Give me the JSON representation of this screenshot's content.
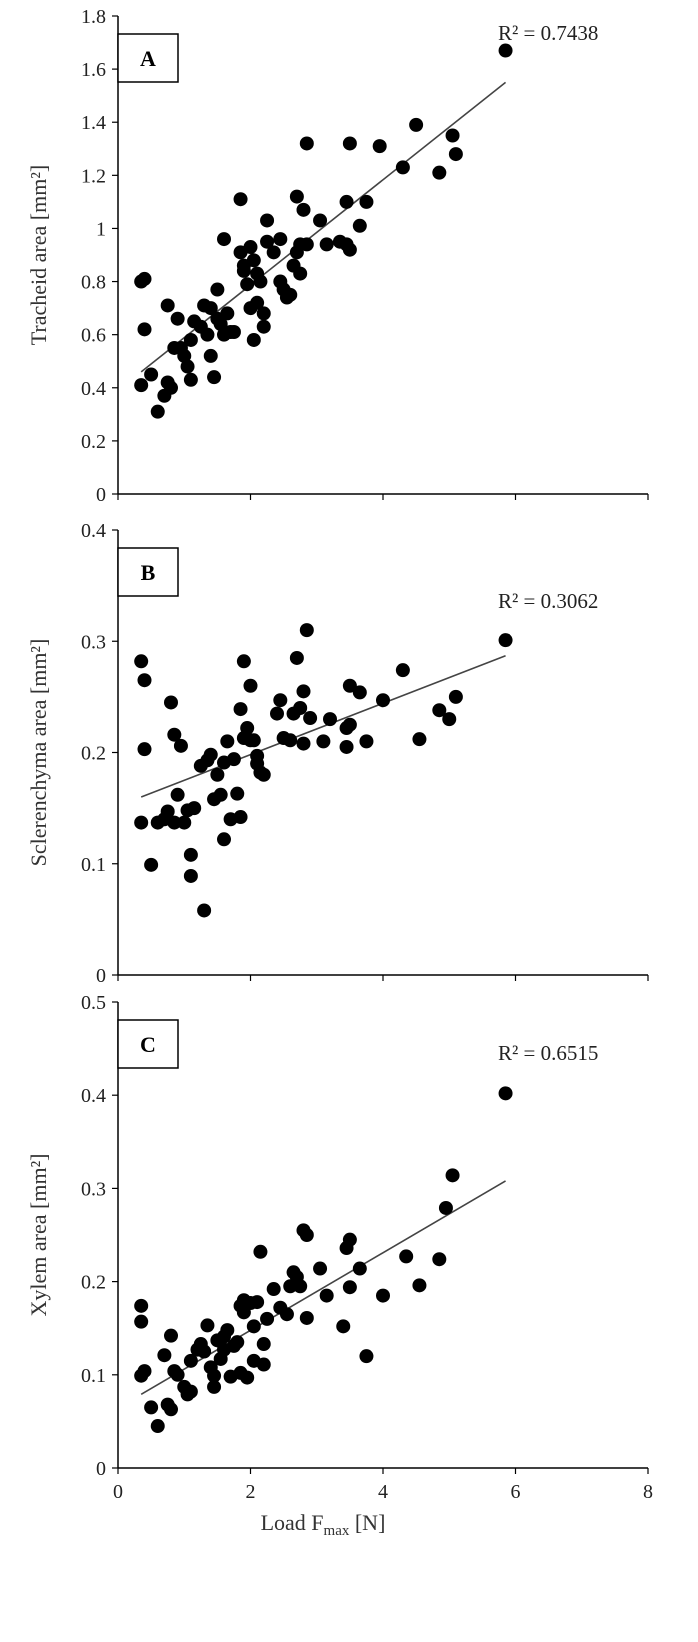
{
  "chart_data": [
    {
      "type": "scatter",
      "panel": "A",
      "ylabel": "Tracheid area [mm²]",
      "r2_label": "R² = 0.7438",
      "ylim": [
        0,
        1.8
      ],
      "yticks": [
        {
          "value": 0,
          "label": "0"
        },
        {
          "value": 0.2,
          "label": "0.2"
        },
        {
          "value": 0.4,
          "label": "0.4"
        },
        {
          "value": 0.6,
          "label": "0.6"
        },
        {
          "value": 0.8,
          "label": "0.8"
        },
        {
          "value": 1.0,
          "label": "1"
        },
        {
          "value": 1.2,
          "label": "1.2"
        },
        {
          "value": 1.4,
          "label": "1.4"
        },
        {
          "value": 1.6,
          "label": "1.6"
        },
        {
          "value": 1.8,
          "label": "1.8"
        }
      ],
      "trendline": {
        "x": [
          0.35,
          5.85
        ],
        "y": [
          0.46,
          1.55
        ]
      },
      "points": [
        [
          0.35,
          0.8
        ],
        [
          0.4,
          0.81
        ],
        [
          0.4,
          0.62
        ],
        [
          0.35,
          0.41
        ],
        [
          0.5,
          0.45
        ],
        [
          0.6,
          0.31
        ],
        [
          0.7,
          0.37
        ],
        [
          0.75,
          0.42
        ],
        [
          0.8,
          0.4
        ],
        [
          0.75,
          0.71
        ],
        [
          0.85,
          0.55
        ],
        [
          0.9,
          0.66
        ],
        [
          0.95,
          0.55
        ],
        [
          1.0,
          0.52
        ],
        [
          1.05,
          0.48
        ],
        [
          1.1,
          0.43
        ],
        [
          1.1,
          0.58
        ],
        [
          1.15,
          0.65
        ],
        [
          1.25,
          0.63
        ],
        [
          1.3,
          0.71
        ],
        [
          1.35,
          0.6
        ],
        [
          1.4,
          0.52
        ],
        [
          1.4,
          0.7
        ],
        [
          1.45,
          0.44
        ],
        [
          1.5,
          0.66
        ],
        [
          1.5,
          0.77
        ],
        [
          1.55,
          0.64
        ],
        [
          1.6,
          0.6
        ],
        [
          1.6,
          0.96
        ],
        [
          1.65,
          0.68
        ],
        [
          1.7,
          0.61
        ],
        [
          1.75,
          0.61
        ],
        [
          1.85,
          1.11
        ],
        [
          1.85,
          0.91
        ],
        [
          1.9,
          0.86
        ],
        [
          1.9,
          0.84
        ],
        [
          1.95,
          0.79
        ],
        [
          2.0,
          0.7
        ],
        [
          2.0,
          0.93
        ],
        [
          2.05,
          0.88
        ],
        [
          2.05,
          0.58
        ],
        [
          2.1,
          0.83
        ],
        [
          2.1,
          0.72
        ],
        [
          2.15,
          0.8
        ],
        [
          2.2,
          0.68
        ],
        [
          2.2,
          0.63
        ],
        [
          2.25,
          0.95
        ],
        [
          2.25,
          1.03
        ],
        [
          2.35,
          0.91
        ],
        [
          2.45,
          0.96
        ],
        [
          2.45,
          0.8
        ],
        [
          2.5,
          0.77
        ],
        [
          2.55,
          0.74
        ],
        [
          2.6,
          0.75
        ],
        [
          2.65,
          0.86
        ],
        [
          2.7,
          1.12
        ],
        [
          2.7,
          0.91
        ],
        [
          2.75,
          0.83
        ],
        [
          2.75,
          0.94
        ],
        [
          2.8,
          1.07
        ],
        [
          2.85,
          1.32
        ],
        [
          2.85,
          0.94
        ],
        [
          3.05,
          1.03
        ],
        [
          3.15,
          0.94
        ],
        [
          3.35,
          0.95
        ],
        [
          3.45,
          1.1
        ],
        [
          3.45,
          0.94
        ],
        [
          3.5,
          1.32
        ],
        [
          3.5,
          0.92
        ],
        [
          3.65,
          1.01
        ],
        [
          3.75,
          1.1
        ],
        [
          3.95,
          1.31
        ],
        [
          4.3,
          1.23
        ],
        [
          4.5,
          1.39
        ],
        [
          4.85,
          1.21
        ],
        [
          5.05,
          1.35
        ],
        [
          5.1,
          1.28
        ],
        [
          5.85,
          1.67
        ]
      ]
    },
    {
      "type": "scatter",
      "panel": "B",
      "ylabel": "Sclerenchyma area [mm²]",
      "r2_label": "R² = 0.3062",
      "ylim": [
        0,
        0.4
      ],
      "yticks": [
        {
          "value": 0,
          "label": "0"
        },
        {
          "value": 0.1,
          "label": "0.1"
        },
        {
          "value": 0.2,
          "label": "0.2"
        },
        {
          "value": 0.3,
          "label": "0.3"
        },
        {
          "value": 0.4,
          "label": "0.4"
        }
      ],
      "trendline": {
        "x": [
          0.35,
          5.85
        ],
        "y": [
          0.16,
          0.287
        ]
      },
      "points": [
        [
          0.35,
          0.282
        ],
        [
          0.4,
          0.265
        ],
        [
          0.4,
          0.203
        ],
        [
          0.35,
          0.137
        ],
        [
          0.5,
          0.099
        ],
        [
          0.6,
          0.137
        ],
        [
          0.7,
          0.14
        ],
        [
          0.75,
          0.147
        ],
        [
          0.8,
          0.245
        ],
        [
          0.85,
          0.216
        ],
        [
          0.85,
          0.137
        ],
        [
          0.9,
          0.162
        ],
        [
          0.95,
          0.206
        ],
        [
          1.0,
          0.137
        ],
        [
          1.05,
          0.148
        ],
        [
          1.1,
          0.089
        ],
        [
          1.1,
          0.108
        ],
        [
          1.15,
          0.15
        ],
        [
          1.25,
          0.188
        ],
        [
          1.3,
          0.058
        ],
        [
          1.35,
          0.193
        ],
        [
          1.4,
          0.198
        ],
        [
          1.45,
          0.158
        ],
        [
          1.5,
          0.18
        ],
        [
          1.55,
          0.162
        ],
        [
          1.6,
          0.122
        ],
        [
          1.6,
          0.191
        ],
        [
          1.65,
          0.21
        ],
        [
          1.7,
          0.14
        ],
        [
          1.75,
          0.194
        ],
        [
          1.8,
          0.163
        ],
        [
          1.85,
          0.239
        ],
        [
          1.85,
          0.142
        ],
        [
          1.9,
          0.282
        ],
        [
          1.9,
          0.213
        ],
        [
          1.95,
          0.222
        ],
        [
          2.0,
          0.26
        ],
        [
          2.0,
          0.211
        ],
        [
          2.05,
          0.211
        ],
        [
          2.1,
          0.197
        ],
        [
          2.1,
          0.19
        ],
        [
          2.15,
          0.182
        ],
        [
          2.2,
          0.18
        ],
        [
          2.4,
          0.235
        ],
        [
          2.45,
          0.247
        ],
        [
          2.5,
          0.213
        ],
        [
          2.6,
          0.211
        ],
        [
          2.65,
          0.235
        ],
        [
          2.7,
          0.285
        ],
        [
          2.75,
          0.24
        ],
        [
          2.8,
          0.255
        ],
        [
          2.8,
          0.208
        ],
        [
          2.85,
          0.31
        ],
        [
          2.9,
          0.231
        ],
        [
          3.1,
          0.21
        ],
        [
          3.2,
          0.23
        ],
        [
          3.45,
          0.222
        ],
        [
          3.45,
          0.205
        ],
        [
          3.5,
          0.26
        ],
        [
          3.5,
          0.225
        ],
        [
          3.65,
          0.254
        ],
        [
          3.75,
          0.21
        ],
        [
          4.0,
          0.247
        ],
        [
          4.3,
          0.274
        ],
        [
          4.55,
          0.212
        ],
        [
          4.85,
          0.238
        ],
        [
          5.0,
          0.23
        ],
        [
          5.1,
          0.25
        ],
        [
          5.85,
          0.301
        ]
      ]
    },
    {
      "type": "scatter",
      "panel": "C",
      "ylabel": "Xylem area [mm²]",
      "xlabel": "Load F",
      "xlabel_subscript": "max",
      "xlabel_unit": " [N]",
      "r2_label": "R² = 0.6515",
      "ylim": [
        0,
        0.5
      ],
      "xlim": [
        0,
        8
      ],
      "yticks": [
        {
          "value": 0,
          "label": "0"
        },
        {
          "value": 0.1,
          "label": "0.1"
        },
        {
          "value": 0.2,
          "label": "0.2"
        },
        {
          "value": 0.3,
          "label": "0.3"
        },
        {
          "value": 0.4,
          "label": "0.4"
        },
        {
          "value": 0.5,
          "label": "0.5"
        }
      ],
      "xticks": [
        {
          "value": 0,
          "label": "0"
        },
        {
          "value": 2,
          "label": "2"
        },
        {
          "value": 4,
          "label": "4"
        },
        {
          "value": 6,
          "label": "6"
        },
        {
          "value": 8,
          "label": "8"
        }
      ],
      "trendline": {
        "x": [
          0.35,
          5.85
        ],
        "y": [
          0.079,
          0.308
        ]
      },
      "points": [
        [
          0.35,
          0.174
        ],
        [
          0.35,
          0.157
        ],
        [
          0.4,
          0.104
        ],
        [
          0.35,
          0.099
        ],
        [
          0.5,
          0.065
        ],
        [
          0.6,
          0.045
        ],
        [
          0.7,
          0.121
        ],
        [
          0.75,
          0.068
        ],
        [
          0.8,
          0.142
        ],
        [
          0.8,
          0.063
        ],
        [
          0.85,
          0.104
        ],
        [
          0.9,
          0.1
        ],
        [
          1.0,
          0.087
        ],
        [
          1.05,
          0.079
        ],
        [
          1.1,
          0.115
        ],
        [
          1.1,
          0.082
        ],
        [
          1.2,
          0.127
        ],
        [
          1.25,
          0.133
        ],
        [
          1.3,
          0.125
        ],
        [
          1.35,
          0.153
        ],
        [
          1.4,
          0.108
        ],
        [
          1.45,
          0.099
        ],
        [
          1.45,
          0.087
        ],
        [
          1.5,
          0.137
        ],
        [
          1.55,
          0.117
        ],
        [
          1.6,
          0.127
        ],
        [
          1.6,
          0.141
        ],
        [
          1.65,
          0.148
        ],
        [
          1.7,
          0.098
        ],
        [
          1.75,
          0.131
        ],
        [
          1.8,
          0.135
        ],
        [
          1.85,
          0.174
        ],
        [
          1.85,
          0.102
        ],
        [
          1.9,
          0.18
        ],
        [
          1.9,
          0.167
        ],
        [
          1.95,
          0.097
        ],
        [
          2.0,
          0.177
        ],
        [
          2.05,
          0.152
        ],
        [
          2.05,
          0.115
        ],
        [
          2.1,
          0.178
        ],
        [
          2.15,
          0.232
        ],
        [
          2.2,
          0.133
        ],
        [
          2.2,
          0.111
        ],
        [
          2.25,
          0.16
        ],
        [
          2.35,
          0.192
        ],
        [
          2.45,
          0.172
        ],
        [
          2.55,
          0.165
        ],
        [
          2.6,
          0.195
        ],
        [
          2.65,
          0.21
        ],
        [
          2.7,
          0.205
        ],
        [
          2.75,
          0.195
        ],
        [
          2.8,
          0.255
        ],
        [
          2.85,
          0.25
        ],
        [
          2.85,
          0.161
        ],
        [
          3.05,
          0.214
        ],
        [
          3.15,
          0.185
        ],
        [
          3.4,
          0.152
        ],
        [
          3.45,
          0.236
        ],
        [
          3.5,
          0.245
        ],
        [
          3.5,
          0.194
        ],
        [
          3.65,
          0.214
        ],
        [
          3.75,
          0.12
        ],
        [
          4.0,
          0.185
        ],
        [
          4.35,
          0.227
        ],
        [
          4.55,
          0.196
        ],
        [
          4.85,
          0.224
        ],
        [
          4.95,
          0.279
        ],
        [
          5.05,
          0.314
        ],
        [
          5.85,
          0.402
        ]
      ]
    }
  ]
}
